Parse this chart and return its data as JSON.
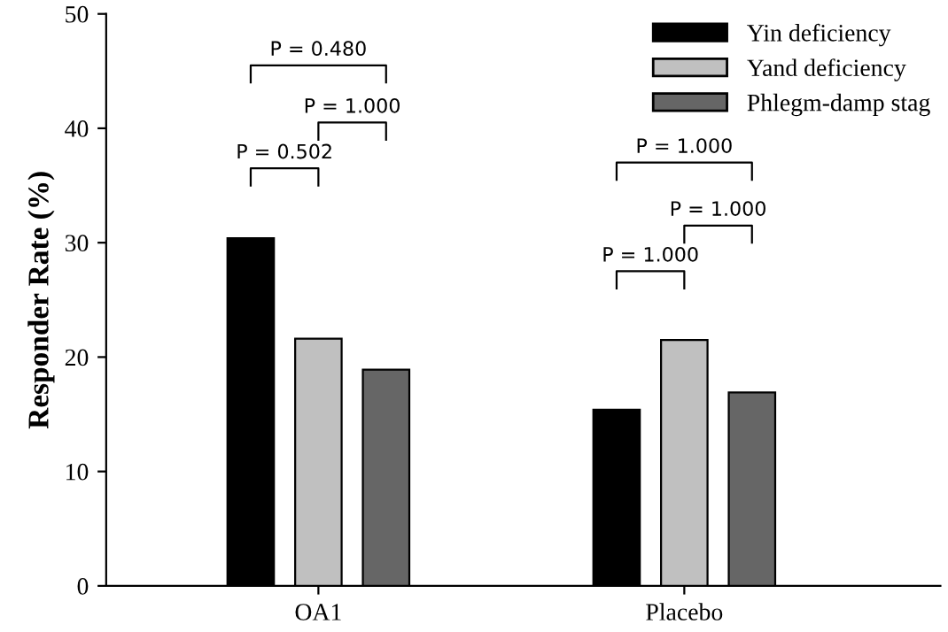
{
  "chart_data": {
    "type": "bar",
    "ylabel": "Responder Rate (%)",
    "categories": [
      "OA1",
      "Placebo"
    ],
    "series": [
      {
        "name": "Yin deficiency",
        "color": "#000000",
        "values": [
          30.4,
          15.4
        ]
      },
      {
        "name": "Yand deficiency",
        "color": "#c0c0c0",
        "values": [
          21.6,
          21.5
        ]
      },
      {
        "name": "Phlegm-damp stag",
        "color": "#666666",
        "values": [
          18.9,
          16.9
        ]
      }
    ],
    "ylim": [
      0,
      50
    ],
    "yticks": [
      0,
      10,
      20,
      30,
      40,
      50
    ],
    "grid": false,
    "legend": "top right",
    "annotations": [
      "P = 0.480",
      "P = 1.000",
      "P = 0.502",
      "P = 1.000",
      "P = 1.000",
      "P = 1.000"
    ]
  }
}
